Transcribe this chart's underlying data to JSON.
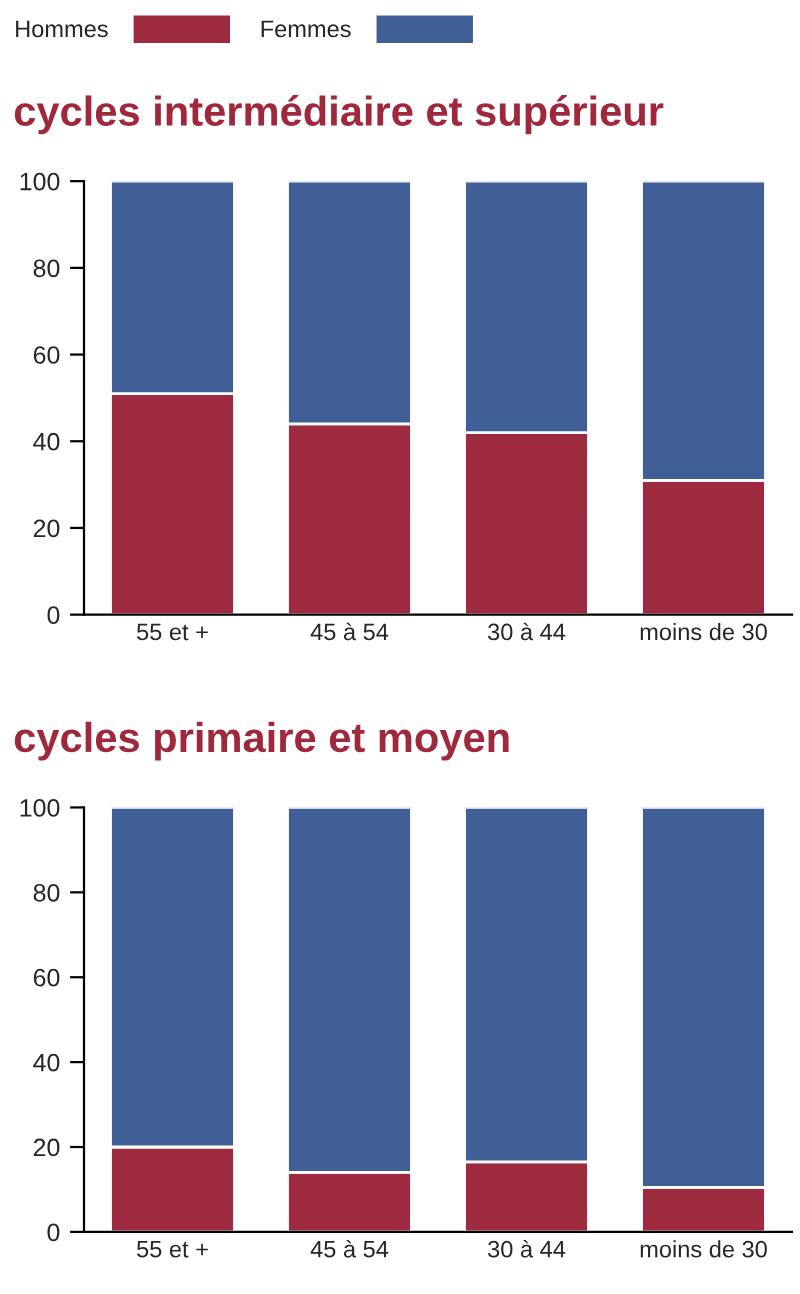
{
  "chart_data": [
    {
      "type": "bar",
      "title": "cycles intermédiaire et supérieur",
      "categories": [
        "55 et +",
        "45 à 54",
        "30 à 44",
        "moins de 30"
      ],
      "stacked": true,
      "series": [
        {
          "name": "Hommes",
          "color": "#9e2a40",
          "values": [
            51,
            44,
            42,
            31
          ]
        },
        {
          "name": "Femmes",
          "color": "#3f5f96",
          "values": [
            49,
            56,
            58,
            69
          ]
        }
      ],
      "ylim": [
        0,
        100
      ],
      "yticks": [
        0,
        20,
        40,
        60,
        80,
        100
      ],
      "grid": false,
      "legend": "top left"
    },
    {
      "type": "bar",
      "title": "cycles primaire et moyen",
      "categories": [
        "55 et +",
        "45 à 54",
        "30 à 44",
        "moins de 30"
      ],
      "stacked": true,
      "series": [
        {
          "color": "#9e2a40",
          "values": [
            20,
            14,
            16.5,
            10.5
          ]
        },
        {
          "color": "#3f5f96",
          "values": [
            80,
            86,
            83.5,
            89.5
          ]
        }
      ],
      "ylim": [
        0,
        100
      ],
      "yticks": [
        0,
        20,
        40,
        60,
        80,
        100
      ],
      "grid": false,
      "legend": false
    }
  ]
}
